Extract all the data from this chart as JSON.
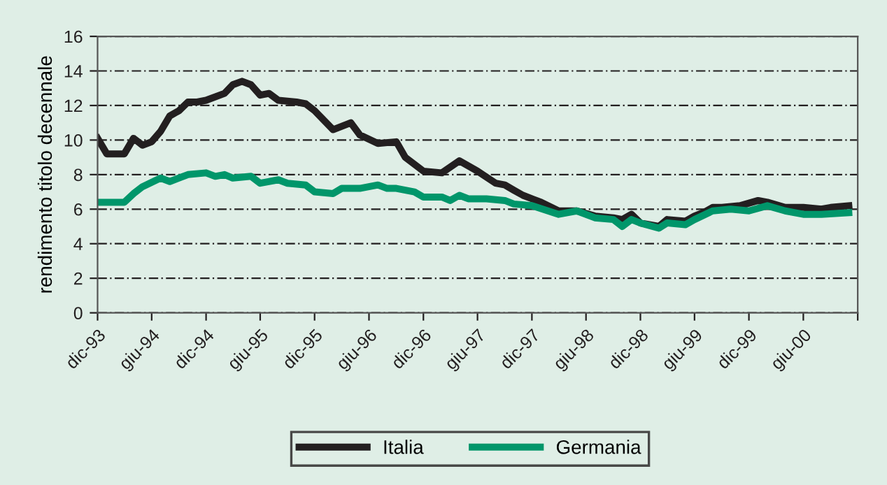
{
  "chart_data": {
    "type": "line",
    "ylabel": "rendimento titolo decennale",
    "ylim": [
      0,
      16
    ],
    "yticks": [
      0,
      2,
      4,
      6,
      8,
      10,
      12,
      14,
      16
    ],
    "xlim": [
      "1993-12",
      "2000-12"
    ],
    "xticks": [
      {
        "value": "1993-12",
        "label": "dic-93"
      },
      {
        "value": "1994-06",
        "label": "giu-94"
      },
      {
        "value": "1994-12",
        "label": "dic-94"
      },
      {
        "value": "1995-06",
        "label": "giu-95"
      },
      {
        "value": "1995-12",
        "label": "dic-95"
      },
      {
        "value": "1996-06",
        "label": "giu-96"
      },
      {
        "value": "1996-12",
        "label": "dic-96"
      },
      {
        "value": "1997-06",
        "label": "giu-97"
      },
      {
        "value": "1997-12",
        "label": "dic-97"
      },
      {
        "value": "1998-06",
        "label": "giu-98"
      },
      {
        "value": "1998-12",
        "label": "dic-98"
      },
      {
        "value": "1999-06",
        "label": "giu-99"
      },
      {
        "value": "1999-12",
        "label": "dic-99"
      },
      {
        "value": "2000-06",
        "label": "giu-00"
      },
      {
        "value": "2000-12",
        "label": null
      }
    ],
    "grid": "y",
    "legend": "bottom",
    "marker": "none",
    "line_style": "solid",
    "series": [
      {
        "name": "Italia",
        "color": "#231f20",
        "x": [
          "1993-12",
          "1994-01",
          "1994-03",
          "1994-04",
          "1994-05",
          "1994-06",
          "1994-07",
          "1994-08",
          "1994-09",
          "1994-10",
          "1994-11",
          "1994-12",
          "1995-02",
          "1995-03",
          "1995-04",
          "1995-05",
          "1995-06",
          "1995-07",
          "1995-08",
          "1995-10",
          "1995-11",
          "1995-12",
          "1996-02",
          "1996-04",
          "1996-05",
          "1996-07",
          "1996-09",
          "1996-10",
          "1996-12",
          "1997-02",
          "1997-04",
          "1997-06",
          "1997-08",
          "1997-09",
          "1997-10",
          "1997-11",
          "1998-01",
          "1998-03",
          "1998-05",
          "1998-07",
          "1998-09",
          "1998-10",
          "1998-11",
          "1998-12",
          "1999-02",
          "1999-03",
          "1999-05",
          "1999-06",
          "1999-07",
          "1999-08",
          "1999-09",
          "1999-11",
          "2000-01",
          "2000-02",
          "2000-04",
          "2000-06",
          "2000-08",
          "2000-09",
          "2000-11"
        ],
        "values": [
          10.1,
          9.2,
          9.2,
          10.1,
          9.7,
          9.9,
          10.5,
          11.4,
          11.7,
          12.2,
          12.2,
          12.3,
          12.7,
          13.2,
          13.4,
          13.2,
          12.6,
          12.7,
          12.3,
          12.2,
          12.1,
          11.7,
          10.6,
          11.0,
          10.3,
          9.8,
          9.9,
          9.0,
          8.2,
          8.1,
          8.8,
          8.2,
          7.5,
          7.4,
          7.1,
          6.8,
          6.4,
          5.9,
          5.9,
          5.6,
          5.5,
          5.4,
          5.7,
          5.2,
          5.0,
          5.4,
          5.3,
          5.6,
          5.8,
          6.1,
          6.1,
          6.2,
          6.5,
          6.4,
          6.1,
          6.1,
          6.0,
          6.1,
          6.2
        ]
      },
      {
        "name": "Germania",
        "color": "#00966a",
        "x": [
          "1993-12",
          "1994-03",
          "1994-04",
          "1994-05",
          "1994-07",
          "1994-08",
          "1994-10",
          "1994-12",
          "1995-01",
          "1995-02",
          "1995-03",
          "1995-05",
          "1995-06",
          "1995-08",
          "1995-09",
          "1995-11",
          "1995-12",
          "1996-02",
          "1996-03",
          "1996-05",
          "1996-07",
          "1996-08",
          "1996-09",
          "1996-11",
          "1996-12",
          "1997-02",
          "1997-03",
          "1997-04",
          "1997-05",
          "1997-07",
          "1997-09",
          "1997-10",
          "1997-12",
          "1998-03",
          "1998-05",
          "1998-07",
          "1998-09",
          "1998-10",
          "1998-11",
          "1998-12",
          "1999-02",
          "1999-03",
          "1999-05",
          "1999-06",
          "1999-08",
          "1999-10",
          "1999-12",
          "2000-02",
          "2000-04",
          "2000-06",
          "2000-08",
          "2000-11"
        ],
        "values": [
          6.4,
          6.4,
          6.9,
          7.3,
          7.8,
          7.6,
          8.0,
          8.1,
          7.9,
          8.0,
          7.8,
          7.9,
          7.5,
          7.7,
          7.5,
          7.4,
          7.0,
          6.9,
          7.2,
          7.2,
          7.4,
          7.2,
          7.2,
          7.0,
          6.7,
          6.7,
          6.5,
          6.8,
          6.6,
          6.6,
          6.5,
          6.3,
          6.2,
          5.7,
          5.9,
          5.5,
          5.4,
          5.0,
          5.4,
          5.2,
          4.9,
          5.2,
          5.1,
          5.4,
          5.9,
          6.0,
          5.9,
          6.2,
          5.9,
          5.7,
          5.7,
          5.8
        ]
      }
    ]
  }
}
